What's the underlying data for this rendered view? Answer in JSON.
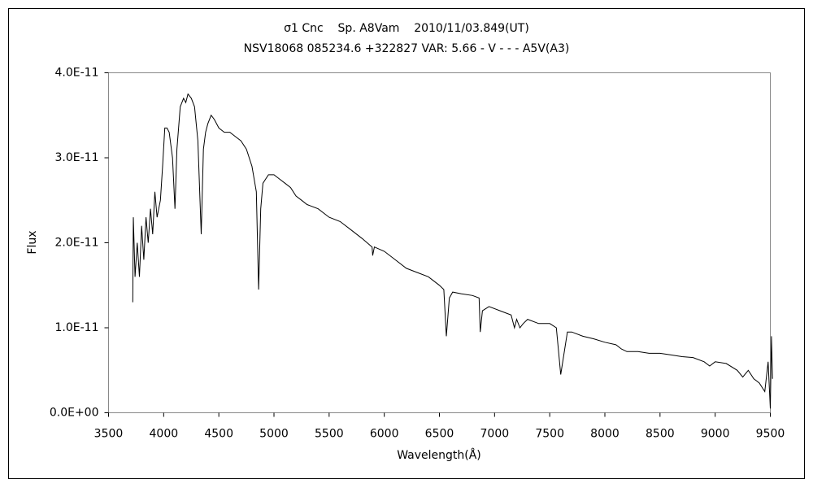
{
  "chart_data": {
    "type": "line",
    "title": "σ1 Cnc    Sp. A8Vam    2010/11/03.849(UT)",
    "subtitle": "NSV18068 085234.6 +322827 VAR: 5.66 - V - - - A5V(A3)",
    "x_label": "Wavelength(Å)",
    "y_label": "Flux",
    "color": "#000000",
    "grid": false,
    "xlim": [
      3500,
      9500
    ],
    "xticks": [
      3500,
      4000,
      4500,
      5000,
      5500,
      6000,
      6500,
      7000,
      7500,
      8000,
      8500,
      9000,
      9500
    ],
    "ylim": [
      0,
      4e-11
    ],
    "yticks": [
      {
        "value": 0,
        "label": "0.0E+00"
      },
      {
        "value": 1e-11,
        "label": "1.0E-11"
      },
      {
        "value": 2e-11,
        "label": "2.0E-11"
      },
      {
        "value": 3e-11,
        "label": "3.0E-11"
      },
      {
        "value": 4e-11,
        "label": "4.0E-11"
      }
    ],
    "x": [
      3720,
      3725,
      3740,
      3760,
      3780,
      3800,
      3820,
      3840,
      3860,
      3880,
      3900,
      3920,
      3940,
      3970,
      3990,
      4010,
      4030,
      4050,
      4080,
      4102,
      4120,
      4150,
      4180,
      4200,
      4220,
      4250,
      4280,
      4310,
      4340,
      4360,
      4380,
      4400,
      4430,
      4460,
      4500,
      4550,
      4600,
      4650,
      4700,
      4750,
      4800,
      4840,
      4861,
      4880,
      4900,
      4950,
      5000,
      5050,
      5100,
      5150,
      5200,
      5250,
      5300,
      5400,
      5500,
      5600,
      5700,
      5800,
      5890,
      5895,
      5910,
      6000,
      6100,
      6200,
      6300,
      6400,
      6500,
      6540,
      6563,
      6590,
      6620,
      6700,
      6800,
      6860,
      6870,
      6890,
      6950,
      7050,
      7150,
      7180,
      7200,
      7230,
      7260,
      7300,
      7400,
      7500,
      7560,
      7600,
      7630,
      7660,
      7700,
      7800,
      7900,
      8000,
      8100,
      8150,
      8200,
      8300,
      8400,
      8500,
      8600,
      8700,
      8800,
      8900,
      8950,
      9000,
      9100,
      9200,
      9250,
      9300,
      9350,
      9400,
      9450,
      9480,
      9500,
      9510,
      9520
    ],
    "values": [
      1.3e-11,
      2.3e-11,
      1.6e-11,
      2e-11,
      1.6e-11,
      2.2e-11,
      1.8e-11,
      2.3e-11,
      2e-11,
      2.4e-11,
      2.1e-11,
      2.6e-11,
      2.3e-11,
      2.5e-11,
      2.9e-11,
      3.35e-11,
      3.35e-11,
      3.3e-11,
      3e-11,
      2.4e-11,
      3.1e-11,
      3.6e-11,
      3.7e-11,
      3.65e-11,
      3.75e-11,
      3.7e-11,
      3.6e-11,
      3.2e-11,
      2.1e-11,
      3.1e-11,
      3.3e-11,
      3.4e-11,
      3.5e-11,
      3.45e-11,
      3.35e-11,
      3.3e-11,
      3.3e-11,
      3.25e-11,
      3.2e-11,
      3.1e-11,
      2.9e-11,
      2.6e-11,
      1.45e-11,
      2.4e-11,
      2.7e-11,
      2.8e-11,
      2.8e-11,
      2.75e-11,
      2.7e-11,
      2.65e-11,
      2.55e-11,
      2.5e-11,
      2.45e-11,
      2.4e-11,
      2.3e-11,
      2.25e-11,
      2.15e-11,
      2.05e-11,
      1.95e-11,
      1.85e-11,
      1.95e-11,
      1.9e-11,
      1.8e-11,
      1.7e-11,
      1.65e-11,
      1.6e-11,
      1.5e-11,
      1.45e-11,
      9e-12,
      1.35e-11,
      1.42e-11,
      1.4e-11,
      1.38e-11,
      1.35e-11,
      9.5e-12,
      1.2e-11,
      1.25e-11,
      1.2e-11,
      1.15e-11,
      1e-11,
      1.1e-11,
      1e-11,
      1.05e-11,
      1.1e-11,
      1.05e-11,
      1.05e-11,
      1e-11,
      4.5e-12,
      7e-12,
      9.5e-12,
      9.5e-12,
      9e-12,
      8.7e-12,
      8.3e-12,
      8e-12,
      7.5e-12,
      7.2e-12,
      7.2e-12,
      7e-12,
      7e-12,
      6.8e-12,
      6.6e-12,
      6.5e-12,
      6e-12,
      5.5e-12,
      6e-12,
      5.8e-12,
      5e-12,
      4.2e-12,
      5e-12,
      4e-12,
      3.5e-12,
      2.5e-12,
      6e-12,
      5e-13,
      9e-12,
      4e-12
    ]
  }
}
